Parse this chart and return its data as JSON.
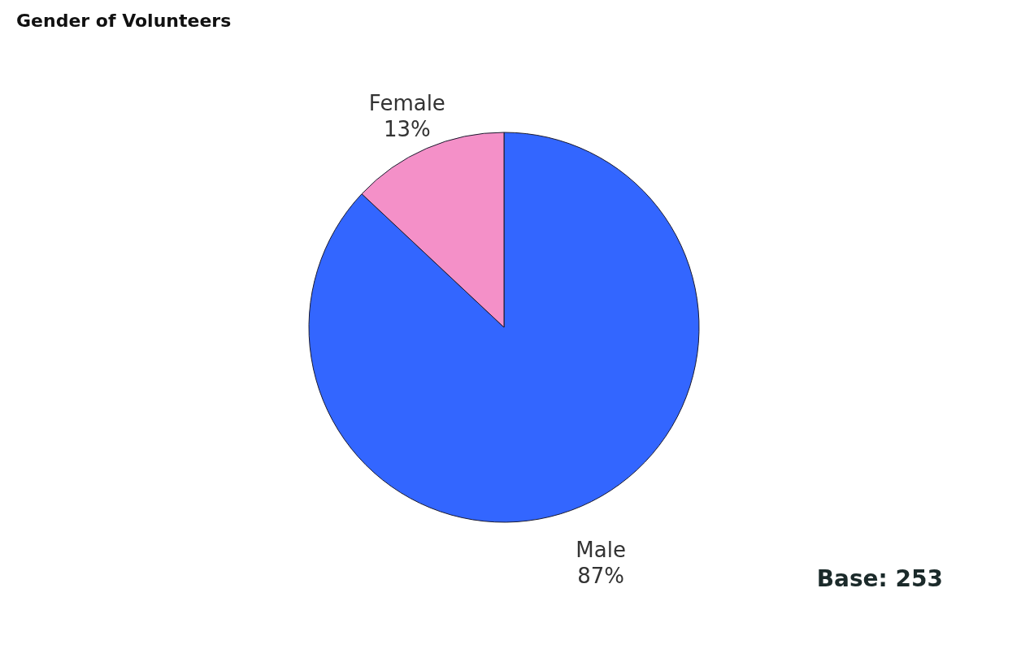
{
  "chart_data": {
    "type": "pie",
    "title": "Gender of Volunteers",
    "categories": [
      "Male",
      "Female"
    ],
    "values": [
      87,
      13
    ],
    "value_labels": [
      "87%",
      "13%"
    ],
    "colors": [
      "#3366ff",
      "#f490c8"
    ],
    "annotations": [
      "Base: 253"
    ]
  }
}
